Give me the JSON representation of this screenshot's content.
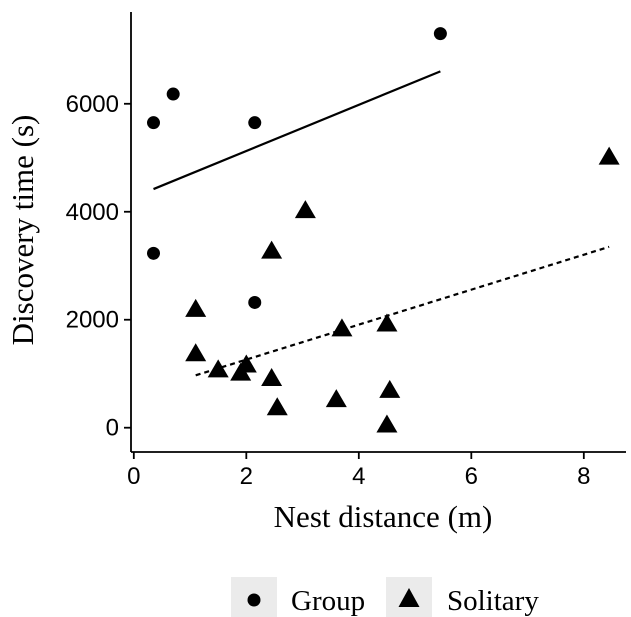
{
  "chart_data": {
    "type": "scatter",
    "xlabel": "Nest distance (m)",
    "ylabel": "Discovery time (s)",
    "xlim": [
      -0.05,
      8.75
    ],
    "ylim": [
      -450,
      7700
    ],
    "x_ticks": [
      0,
      2,
      4,
      6,
      8
    ],
    "y_ticks": [
      0,
      2000,
      4000,
      6000
    ],
    "x_tick_labels": [
      "0",
      "2",
      "4",
      "6",
      "8"
    ],
    "y_tick_labels": [
      "0",
      "2000",
      "4000",
      "6000"
    ],
    "grid": false,
    "legend": {
      "position": "bottom",
      "entries": [
        "Group",
        "Solitary"
      ]
    },
    "colors": {
      "points": "#000000",
      "legend_key_bg": "#ebebeb",
      "axis": "#000000"
    },
    "series": [
      {
        "name": "Group",
        "marker": "circle",
        "points": [
          [
            0.35,
            5650
          ],
          [
            0.7,
            6180
          ],
          [
            2.15,
            5650
          ],
          [
            5.45,
            7300
          ],
          [
            0.35,
            3230
          ],
          [
            2.15,
            2320
          ]
        ],
        "fit": {
          "style": "solid",
          "x": [
            0.35,
            5.45
          ],
          "y": [
            4420,
            6600
          ]
        }
      },
      {
        "name": "Solitary",
        "marker": "triangle",
        "points": [
          [
            1.1,
            2200
          ],
          [
            1.1,
            1380
          ],
          [
            1.5,
            1080
          ],
          [
            1.9,
            1020
          ],
          [
            2.0,
            1170
          ],
          [
            2.45,
            3280
          ],
          [
            2.45,
            920
          ],
          [
            2.55,
            380
          ],
          [
            3.05,
            4030
          ],
          [
            3.6,
            530
          ],
          [
            3.7,
            1840
          ],
          [
            4.5,
            1930
          ],
          [
            4.5,
            60
          ],
          [
            4.55,
            700
          ],
          [
            8.45,
            5020
          ]
        ],
        "fit": {
          "style": "dashed",
          "x": [
            1.1,
            8.45
          ],
          "y": [
            970,
            3350
          ]
        }
      }
    ]
  }
}
